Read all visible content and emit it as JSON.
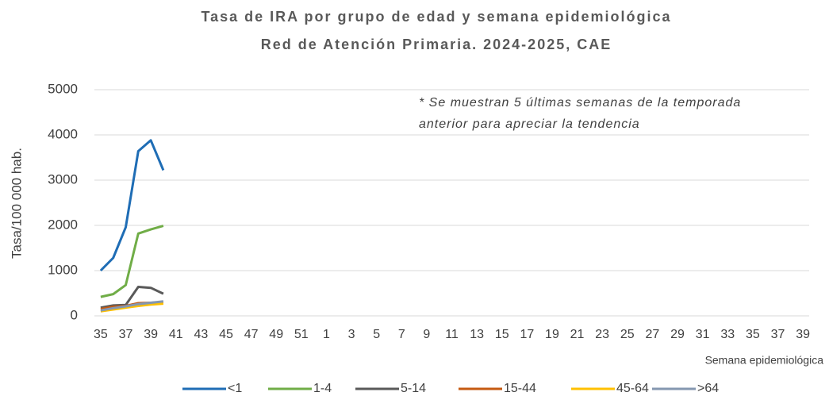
{
  "chart_data": {
    "type": "line",
    "title": "Tasa de IRA por grupo de edad y semana epidemiológica",
    "subtitle": "Red de Atención Primaria. 2024-2025, CAE",
    "y_label": "Tasa/100 000 hab.",
    "x_label": "Semana epidemiológica",
    "annotation": [
      "* Se muestran 5 últimas semanas de la temporada",
      "anterior para apreciar la tendencia"
    ],
    "categories": [
      "35",
      null,
      "37",
      null,
      "39",
      null,
      "41",
      null,
      "43",
      null,
      "45",
      null,
      "47",
      null,
      "49",
      null,
      "51",
      null,
      "1",
      null,
      "3",
      null,
      "5",
      null,
      "7",
      null,
      "9",
      null,
      "11",
      null,
      "13",
      null,
      "15",
      null,
      "17",
      null,
      "19",
      null,
      "21",
      null,
      "23",
      null,
      "25",
      null,
      "27",
      null,
      "29",
      null,
      "31",
      null,
      "33",
      null,
      "35",
      null,
      "37",
      null,
      "39"
    ],
    "ylim": [
      0,
      5000
    ],
    "yticks": [
      0,
      1000,
      2000,
      3000,
      4000,
      5000
    ],
    "grid": true,
    "legend": "bottom",
    "series": [
      {
        "name": "<1",
        "color": "#1f6db5",
        "values": [
          1000,
          1280,
          1960,
          3640,
          3880,
          3220,
          null,
          null,
          null,
          null,
          null,
          null,
          null,
          null,
          null,
          null,
          null,
          null,
          null,
          null,
          null,
          null,
          null,
          null,
          null,
          null,
          null,
          null,
          null,
          null,
          null,
          null,
          null,
          null,
          null,
          null,
          null,
          null,
          null,
          null,
          null,
          null,
          null,
          null,
          null,
          null,
          null,
          null,
          null,
          null,
          null,
          null,
          null,
          null,
          null,
          null,
          null
        ]
      },
      {
        "name": "1-4",
        "color": "#70ad47",
        "values": [
          420,
          480,
          680,
          1820,
          1910,
          1990,
          null,
          null,
          null,
          null,
          null,
          null,
          null,
          null,
          null,
          null,
          null,
          null,
          null,
          null,
          null,
          null,
          null,
          null,
          null,
          null,
          null,
          null,
          null,
          null,
          null,
          null,
          null,
          null,
          null,
          null,
          null,
          null,
          null,
          null,
          null,
          null,
          null,
          null,
          null,
          null,
          null,
          null,
          null,
          null,
          null,
          null,
          null,
          null,
          null,
          null,
          null
        ]
      },
      {
        "name": "5-14",
        "color": "#595959",
        "values": [
          180,
          230,
          240,
          640,
          620,
          490,
          null,
          null,
          null,
          null,
          null,
          null,
          null,
          null,
          null,
          null,
          null,
          null,
          null,
          null,
          null,
          null,
          null,
          null,
          null,
          null,
          null,
          null,
          null,
          null,
          null,
          null,
          null,
          null,
          null,
          null,
          null,
          null,
          null,
          null,
          null,
          null,
          null,
          null,
          null,
          null,
          null,
          null,
          null,
          null,
          null,
          null,
          null,
          null,
          null,
          null,
          null
        ]
      },
      {
        "name": "15-44",
        "color": "#c55a11",
        "values": [
          150,
          200,
          220,
          280,
          290,
          300,
          null,
          null,
          null,
          null,
          null,
          null,
          null,
          null,
          null,
          null,
          null,
          null,
          null,
          null,
          null,
          null,
          null,
          null,
          null,
          null,
          null,
          null,
          null,
          null,
          null,
          null,
          null,
          null,
          null,
          null,
          null,
          null,
          null,
          null,
          null,
          null,
          null,
          null,
          null,
          null,
          null,
          null,
          null,
          null,
          null,
          null,
          null,
          null,
          null,
          null,
          null
        ]
      },
      {
        "name": "45-64",
        "color": "#ffc000",
        "values": [
          100,
          140,
          180,
          220,
          250,
          270,
          null,
          null,
          null,
          null,
          null,
          null,
          null,
          null,
          null,
          null,
          null,
          null,
          null,
          null,
          null,
          null,
          null,
          null,
          null,
          null,
          null,
          null,
          null,
          null,
          null,
          null,
          null,
          null,
          null,
          null,
          null,
          null,
          null,
          null,
          null,
          null,
          null,
          null,
          null,
          null,
          null,
          null,
          null,
          null,
          null,
          null,
          null,
          null,
          null,
          null,
          null
        ]
      },
      {
        "name": ">64",
        "color": "#8497b0",
        "values": [
          120,
          170,
          210,
          260,
          290,
          320,
          null,
          null,
          null,
          null,
          null,
          null,
          null,
          null,
          null,
          null,
          null,
          null,
          null,
          null,
          null,
          null,
          null,
          null,
          null,
          null,
          null,
          null,
          null,
          null,
          null,
          null,
          null,
          null,
          null,
          null,
          null,
          null,
          null,
          null,
          null,
          null,
          null,
          null,
          null,
          null,
          null,
          null,
          null,
          null,
          null,
          null,
          null,
          null,
          null,
          null,
          null
        ]
      }
    ]
  }
}
